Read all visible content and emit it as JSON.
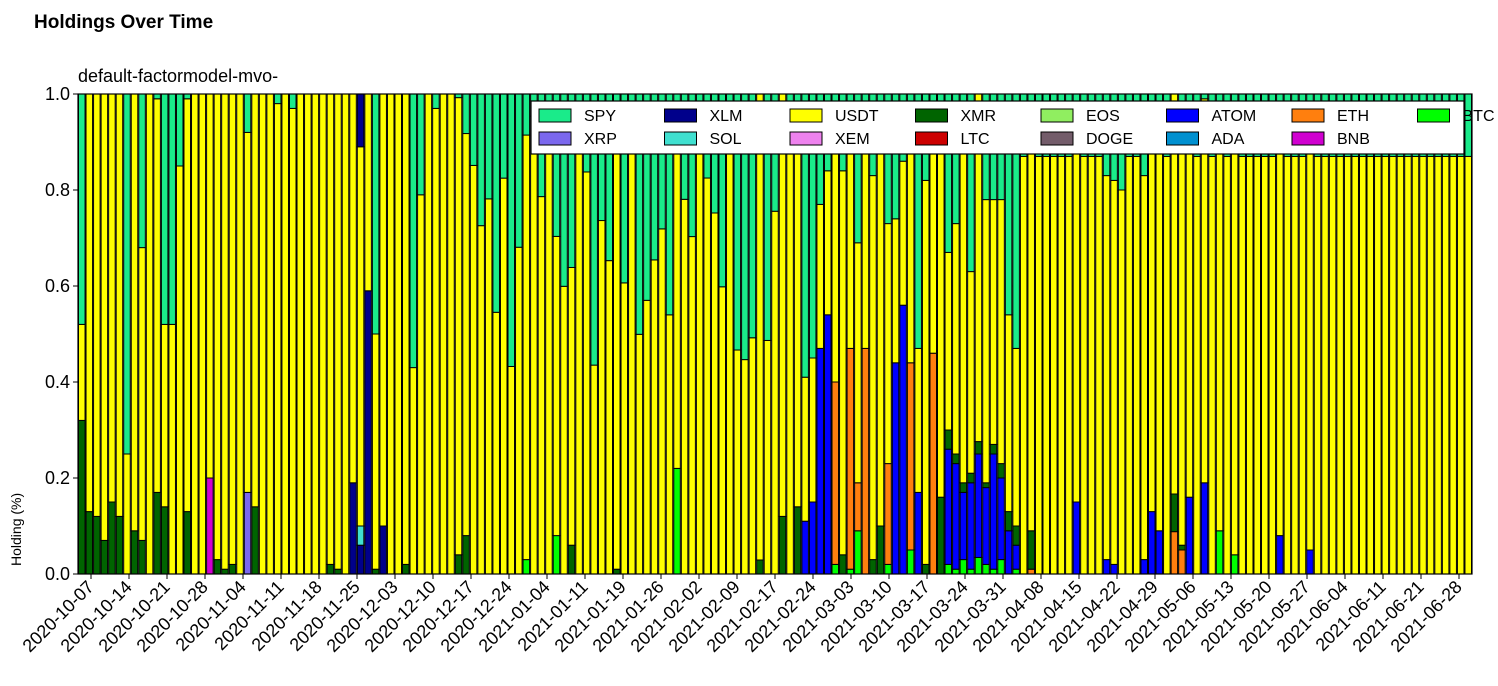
{
  "page": {
    "title": "Holdings Over Time"
  },
  "chart_data": {
    "type": "bar",
    "stacked": true,
    "title": "default-factormodel-mvo-",
    "xlabel": "",
    "ylabel": "Holding (%)",
    "ylim": [
      0,
      1.0
    ],
    "yticks": [
      "0.0",
      "0.2",
      "0.4",
      "0.6",
      "0.8",
      "1.0"
    ],
    "ytick_values": [
      0,
      0.2,
      0.4,
      0.6,
      0.8,
      1.0
    ],
    "xtick_labels": [
      "2020-10-07",
      "2020-10-14",
      "2020-10-21",
      "2020-10-28",
      "2020-11-04",
      "2020-11-11",
      "2020-11-18",
      "2020-11-25",
      "2020-12-03",
      "2020-12-10",
      "2020-12-17",
      "2020-12-24",
      "2021-01-04",
      "2021-01-11",
      "2021-01-19",
      "2021-01-26",
      "2021-02-02",
      "2021-02-09",
      "2021-02-17",
      "2021-02-24",
      "2021-03-03",
      "2021-03-10",
      "2021-03-17",
      "2021-03-24",
      "2021-03-31",
      "2021-04-08",
      "2021-04-15",
      "2021-04-22",
      "2021-04-29",
      "2021-05-06",
      "2021-05-13",
      "2021-05-20",
      "2021-05-27",
      "2021-06-04",
      "2021-06-11",
      "2021-06-21",
      "2021-06-28"
    ],
    "num_bars": 185,
    "legend_position": "top-right",
    "series_order": [
      "BTC",
      "ETH",
      "ATOM",
      "ADA",
      "BNB",
      "XMR",
      "LTC",
      "XLM",
      "SOL",
      "XRP",
      "XEM",
      "EOS",
      "DOGE",
      "USDT",
      "SPY"
    ],
    "legend": [
      {
        "name": "SPY",
        "color": "#1aeb8a"
      },
      {
        "name": "XRP",
        "color": "#7b68ee"
      },
      {
        "name": "XLM",
        "color": "#00008b"
      },
      {
        "name": "SOL",
        "color": "#40e0d0"
      },
      {
        "name": "USDT",
        "color": "#ffff00"
      },
      {
        "name": "XEM",
        "color": "#ee82ee"
      },
      {
        "name": "XMR",
        "color": "#006400"
      },
      {
        "name": "LTC",
        "color": "#cc0000"
      },
      {
        "name": "EOS",
        "color": "#90ee60"
      },
      {
        "name": "DOGE",
        "color": "#735c6a"
      },
      {
        "name": "ATOM",
        "color": "#0000ff"
      },
      {
        "name": "ADA",
        "color": "#0090d0"
      },
      {
        "name": "ETH",
        "color": "#ff7f0e"
      },
      {
        "name": "BNB",
        "color": "#d000d0"
      },
      {
        "name": "BTC",
        "color": "#00ff00"
      }
    ],
    "note": "Each bar is a trading day; values are holding weights (0-1). Unlisted days are 100% SPY.",
    "bars": [
      {
        "XMR": 0.32,
        "USDT": 0.2
      },
      {
        "XMR": 0.13,
        "USDT": 0.87
      },
      {
        "XMR": 0.12,
        "USDT": 0.88
      },
      {
        "XMR": 0.07,
        "USDT": 0.93
      },
      {
        "XMR": 0.15,
        "USDT": 0.85
      },
      {
        "XMR": 0.12,
        "USDT": 0.88
      },
      {
        "XMR": 0.0,
        "USDT": 0.25
      },
      {
        "XMR": 0.09,
        "USDT": 0.91
      },
      {
        "XMR": 0.07,
        "USDT": 0.61
      },
      {
        "XMR": 0.0,
        "USDT": 1.0
      },
      {
        "XMR": 0.17,
        "USDT": 0.82
      },
      {
        "XMR": 0.14,
        "USDT": 0.38
      },
      {
        "USDT": 0.52
      },
      {
        "USDT": 0.85
      },
      {
        "XMR": 0.13,
        "USDT": 0.86
      },
      {
        "USDT": 1.0
      },
      {
        "USDT": 1.0
      },
      {
        "BNB": 0.2,
        "USDT": 0.8
      },
      {
        "XMR": 0.03,
        "USDT": 0.97
      },
      {
        "XMR": 0.01,
        "USDT": 0.99
      },
      {
        "XMR": 0.02,
        "USDT": 0.98
      },
      {
        "USDT": 1.0
      },
      {
        "USDT": 0.75,
        "XRP": 0.17,
        "SPY": 0.08
      },
      {
        "XMR": 0.14,
        "USDT": 0.86
      },
      {
        "USDT": 1.0
      },
      {
        "USDT": 1.0
      },
      {
        "USDT": 0.98
      },
      {
        "USDT": 1.0
      },
      {
        "USDT": 0.97
      },
      {
        "USDT": 1.0
      },
      {
        "USDT": 1.0
      },
      {
        "USDT": 1.0
      },
      {
        "USDT": 1.0
      },
      {
        "XMR": 0.02,
        "USDT": 0.98
      },
      {
        "XMR": 0.01,
        "USDT": 0.99
      },
      {
        "USDT": 1.0
      },
      {
        "XLM": 0.19,
        "USDT": 0.81
      },
      {
        "XLM": 0.06,
        "USDT": 0.79,
        "SOL": 0.04,
        "XLM2": 0.11
      },
      {
        "XLM": 0.59,
        "USDT": 0.41
      },
      {
        "XMR": 0.01,
        "USDT": 0.49
      },
      {
        "XLM": 0.1,
        "USDT": 0.9
      },
      {
        "USDT": 1.0
      },
      {
        "USDT": 1.0
      },
      {
        "XMR": 0.02,
        "USDT": 0.98
      },
      {
        "USDT": 0.43
      },
      {
        "USDT": 0.79
      },
      {
        "USDT": 1.0
      },
      {
        "USDT": 0.97
      },
      {
        "USDT": 1.0
      },
      {
        "USDT": 1.0
      }
    ]
  }
}
